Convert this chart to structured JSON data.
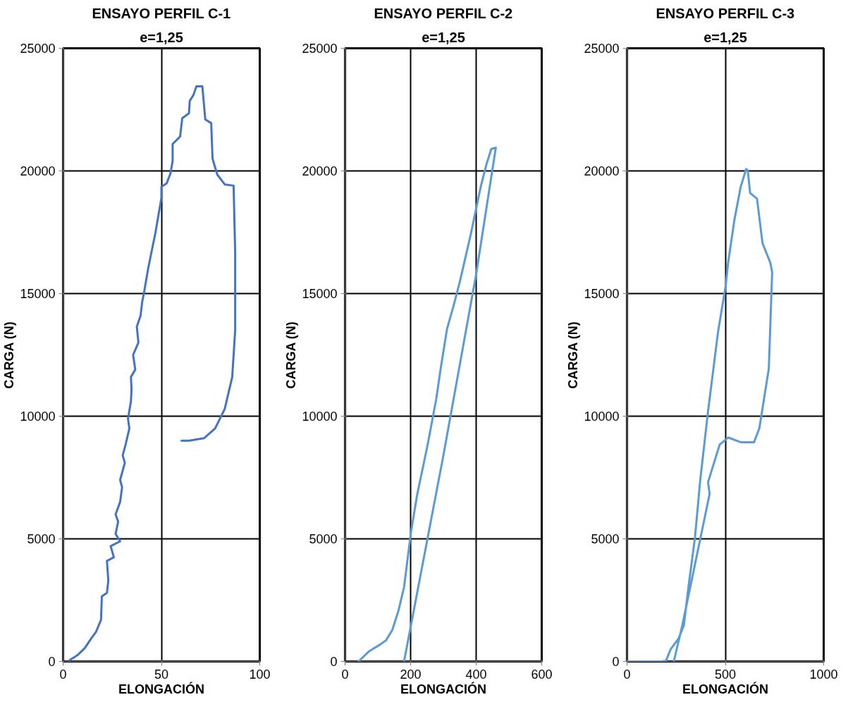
{
  "chart_data": [
    {
      "type": "line",
      "title": "ENSAYO PERFIL C-1",
      "subtitle": "e=1,25",
      "xlabel": "ELONGACIÓN",
      "ylabel": "CARGA (N)",
      "xlim": [
        0,
        100
      ],
      "ylim": [
        0,
        25000
      ],
      "xticks": [
        0,
        50,
        100
      ],
      "yticks": [
        0,
        5000,
        10000,
        15000,
        20000,
        25000
      ],
      "grid": true,
      "series": [
        {
          "color": "#4472c4",
          "x": [
            3.4,
            7.2,
            11,
            14,
            16.7,
            19.3,
            19.7,
            22.3,
            23,
            22.3,
            25.8,
            24.2,
            29,
            26.7,
            28,
            26.7,
            29,
            30,
            29,
            31.4,
            30.3,
            31.8,
            33.7,
            33,
            34.5,
            34.8,
            34.5,
            36.7,
            35.6,
            38.3,
            37.5,
            39.4,
            40.2,
            41.3,
            43.2,
            47,
            50,
            50,
            52.7,
            54.6,
            55.7,
            55.7,
            59.5,
            60.6,
            64,
            64.4,
            66.3,
            67.8,
            70.8,
            72.3,
            75.3,
            76,
            78.4,
            82.2,
            86.7,
            87.5,
            87.5,
            86,
            82.2,
            77.3,
            71.6,
            64,
            60.2
          ],
          "values": [
            60,
            250,
            540,
            900,
            1200,
            1700,
            2650,
            2800,
            3300,
            4100,
            4250,
            4700,
            4900,
            5200,
            5700,
            6000,
            6500,
            7100,
            7400,
            8100,
            8400,
            8850,
            9500,
            9900,
            10600,
            11100,
            11600,
            11900,
            12500,
            13000,
            13650,
            14100,
            14650,
            15100,
            16000,
            17500,
            18900,
            19350,
            19500,
            19900,
            20400,
            21100,
            21400,
            22150,
            22350,
            22850,
            23100,
            23450,
            23450,
            22100,
            21950,
            20500,
            19850,
            19450,
            19400,
            16700,
            13500,
            11600,
            10300,
            9500,
            9100,
            9000,
            9000
          ]
        }
      ]
    },
    {
      "type": "line",
      "title": "ENSAYO PERFIL C-2",
      "subtitle": "e=1,25",
      "xlabel": "ELONGACIÓN",
      "ylabel": "CARGA (N)",
      "xlim": [
        0,
        600
      ],
      "ylim": [
        0,
        25000
      ],
      "xticks": [
        0,
        200,
        400,
        600
      ],
      "yticks": [
        0,
        5000,
        10000,
        15000,
        20000,
        25000
      ],
      "grid": true,
      "series": [
        {
          "color": "#5b9bd5",
          "x": [
            41,
            72,
            108,
            125,
            144,
            163,
            180,
            201,
            220,
            251,
            278,
            292,
            311,
            331,
            350,
            383,
            414,
            431,
            446,
            460,
            400,
            300,
            180
          ],
          "values": [
            0,
            400,
            700,
            860,
            1280,
            2070,
            3030,
            5260,
            6800,
            8770,
            10680,
            11960,
            13550,
            14500,
            15470,
            17380,
            19360,
            20250,
            20890,
            20950,
            15790,
            8400,
            0
          ]
        }
      ]
    },
    {
      "type": "line",
      "title": "ENSAYO PERFIL C-3",
      "subtitle": "e=1,25",
      "xlabel": "ELONGACIÓN",
      "ylabel": "CARGA (N)",
      "xlim": [
        0,
        1000
      ],
      "ylim": [
        0,
        25000
      ],
      "xticks": [
        0,
        500,
        1000
      ],
      "yticks": [
        0,
        5000,
        10000,
        15000,
        20000,
        25000
      ],
      "grid": true,
      "series": [
        {
          "color": "#5b9bd5",
          "x": [
            0,
            95,
            170,
            198,
            222,
            261,
            289,
            313,
            346,
            372,
            412,
            463,
            502,
            514,
            546,
            578,
            606,
            614,
            626,
            661,
            689,
            729,
            738,
            721,
            673,
            646,
            578,
            514,
            471,
            412,
            420,
            281,
            238
          ],
          "values": [
            0,
            0,
            0,
            30,
            500,
            920,
            1470,
            3070,
            5080,
            7370,
            10200,
            13440,
            15330,
            16250,
            18000,
            19350,
            20080,
            20020,
            19100,
            18870,
            17050,
            16250,
            15870,
            11940,
            9510,
            8940,
            8940,
            9130,
            8840,
            7310,
            6830,
            1470,
            0
          ]
        }
      ]
    }
  ]
}
